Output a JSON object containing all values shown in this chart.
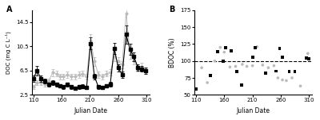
{
  "panel_A_label": "A",
  "panel_B_label": "B",
  "xlabel": "Julian Date",
  "ylabel_A": "DOC (mg C L⁻¹)",
  "ylabel_B": "BDOC (%)",
  "xlim": [
    107,
    315
  ],
  "xticks": [
    110,
    160,
    210,
    260,
    310
  ],
  "ylim_A": [
    2.5,
    16.5
  ],
  "yticks_A": [
    2.5,
    6.5,
    10.5,
    14.5
  ],
  "ylim_B": [
    50,
    175
  ],
  "yticks_B": [
    50,
    75,
    100,
    125,
    150,
    175
  ],
  "dashed_line_y": 100,
  "black_series": {
    "x": [
      110,
      116,
      123,
      130,
      137,
      144,
      151,
      157,
      163,
      170,
      177,
      184,
      191,
      197,
      204,
      211,
      218,
      225,
      232,
      239,
      246,
      253,
      260,
      267,
      274,
      281,
      288,
      295,
      302,
      309
    ],
    "y": [
      5.2,
      6.5,
      5.2,
      4.8,
      4.2,
      4.5,
      4.2,
      4.0,
      3.8,
      4.2,
      3.8,
      3.6,
      3.8,
      3.9,
      3.7,
      11.0,
      5.5,
      3.8,
      3.7,
      4.0,
      4.3,
      10.2,
      7.0,
      5.8,
      12.5,
      10.0,
      8.8,
      7.0,
      6.8,
      6.5
    ],
    "yerr": [
      0.5,
      0.8,
      0.5,
      0.4,
      0.3,
      0.4,
      0.3,
      0.3,
      0.3,
      0.3,
      0.3,
      0.2,
      0.3,
      0.3,
      0.3,
      1.0,
      0.5,
      0.3,
      0.3,
      0.3,
      0.4,
      0.9,
      0.6,
      0.5,
      1.5,
      0.9,
      0.7,
      0.5,
      0.5,
      0.5
    ]
  },
  "gray_series": {
    "x": [
      110,
      116,
      123,
      130,
      137,
      144,
      151,
      157,
      163,
      170,
      177,
      184,
      191,
      197,
      204,
      211,
      218,
      225,
      232,
      239,
      246,
      253,
      260,
      267,
      274,
      281,
      288,
      295,
      302,
      309
    ],
    "y": [
      3.8,
      4.5,
      4.5,
      4.2,
      4.8,
      6.2,
      6.0,
      5.5,
      5.5,
      5.8,
      5.5,
      5.5,
      5.8,
      6.0,
      5.5,
      11.5,
      8.0,
      5.8,
      5.5,
      6.0,
      6.2,
      8.8,
      8.0,
      7.5,
      16.0,
      9.2,
      8.2,
      6.8,
      7.2,
      6.5
    ],
    "yerr": [
      0.3,
      0.4,
      0.4,
      0.3,
      0.4,
      0.6,
      0.5,
      0.5,
      0.4,
      0.5,
      0.4,
      0.4,
      0.5,
      0.5,
      0.4,
      1.0,
      0.7,
      0.5,
      0.4,
      0.5,
      0.5,
      0.8,
      0.7,
      0.6,
      3.0,
      0.8,
      0.7,
      0.5,
      0.6,
      0.5
    ]
  },
  "scatter_black_x": [
    110,
    135,
    148,
    158,
    163,
    172,
    182,
    191,
    210,
    215,
    233,
    252,
    258,
    263,
    275,
    285,
    305,
    310
  ],
  "scatter_black_y": [
    59,
    79,
    114,
    100,
    120,
    115,
    84,
    65,
    105,
    120,
    82,
    85,
    118,
    106,
    84,
    84,
    104,
    103
  ],
  "scatter_gray_x": [
    120,
    130,
    143,
    153,
    160,
    170,
    180,
    192,
    200,
    210,
    218,
    228,
    238,
    248,
    255,
    263,
    270,
    280,
    295,
    308
  ],
  "scatter_gray_y": [
    90,
    68,
    100,
    120,
    113,
    91,
    92,
    95,
    92,
    93,
    121,
    94,
    90,
    93,
    75,
    72,
    71,
    75,
    63,
    111
  ]
}
